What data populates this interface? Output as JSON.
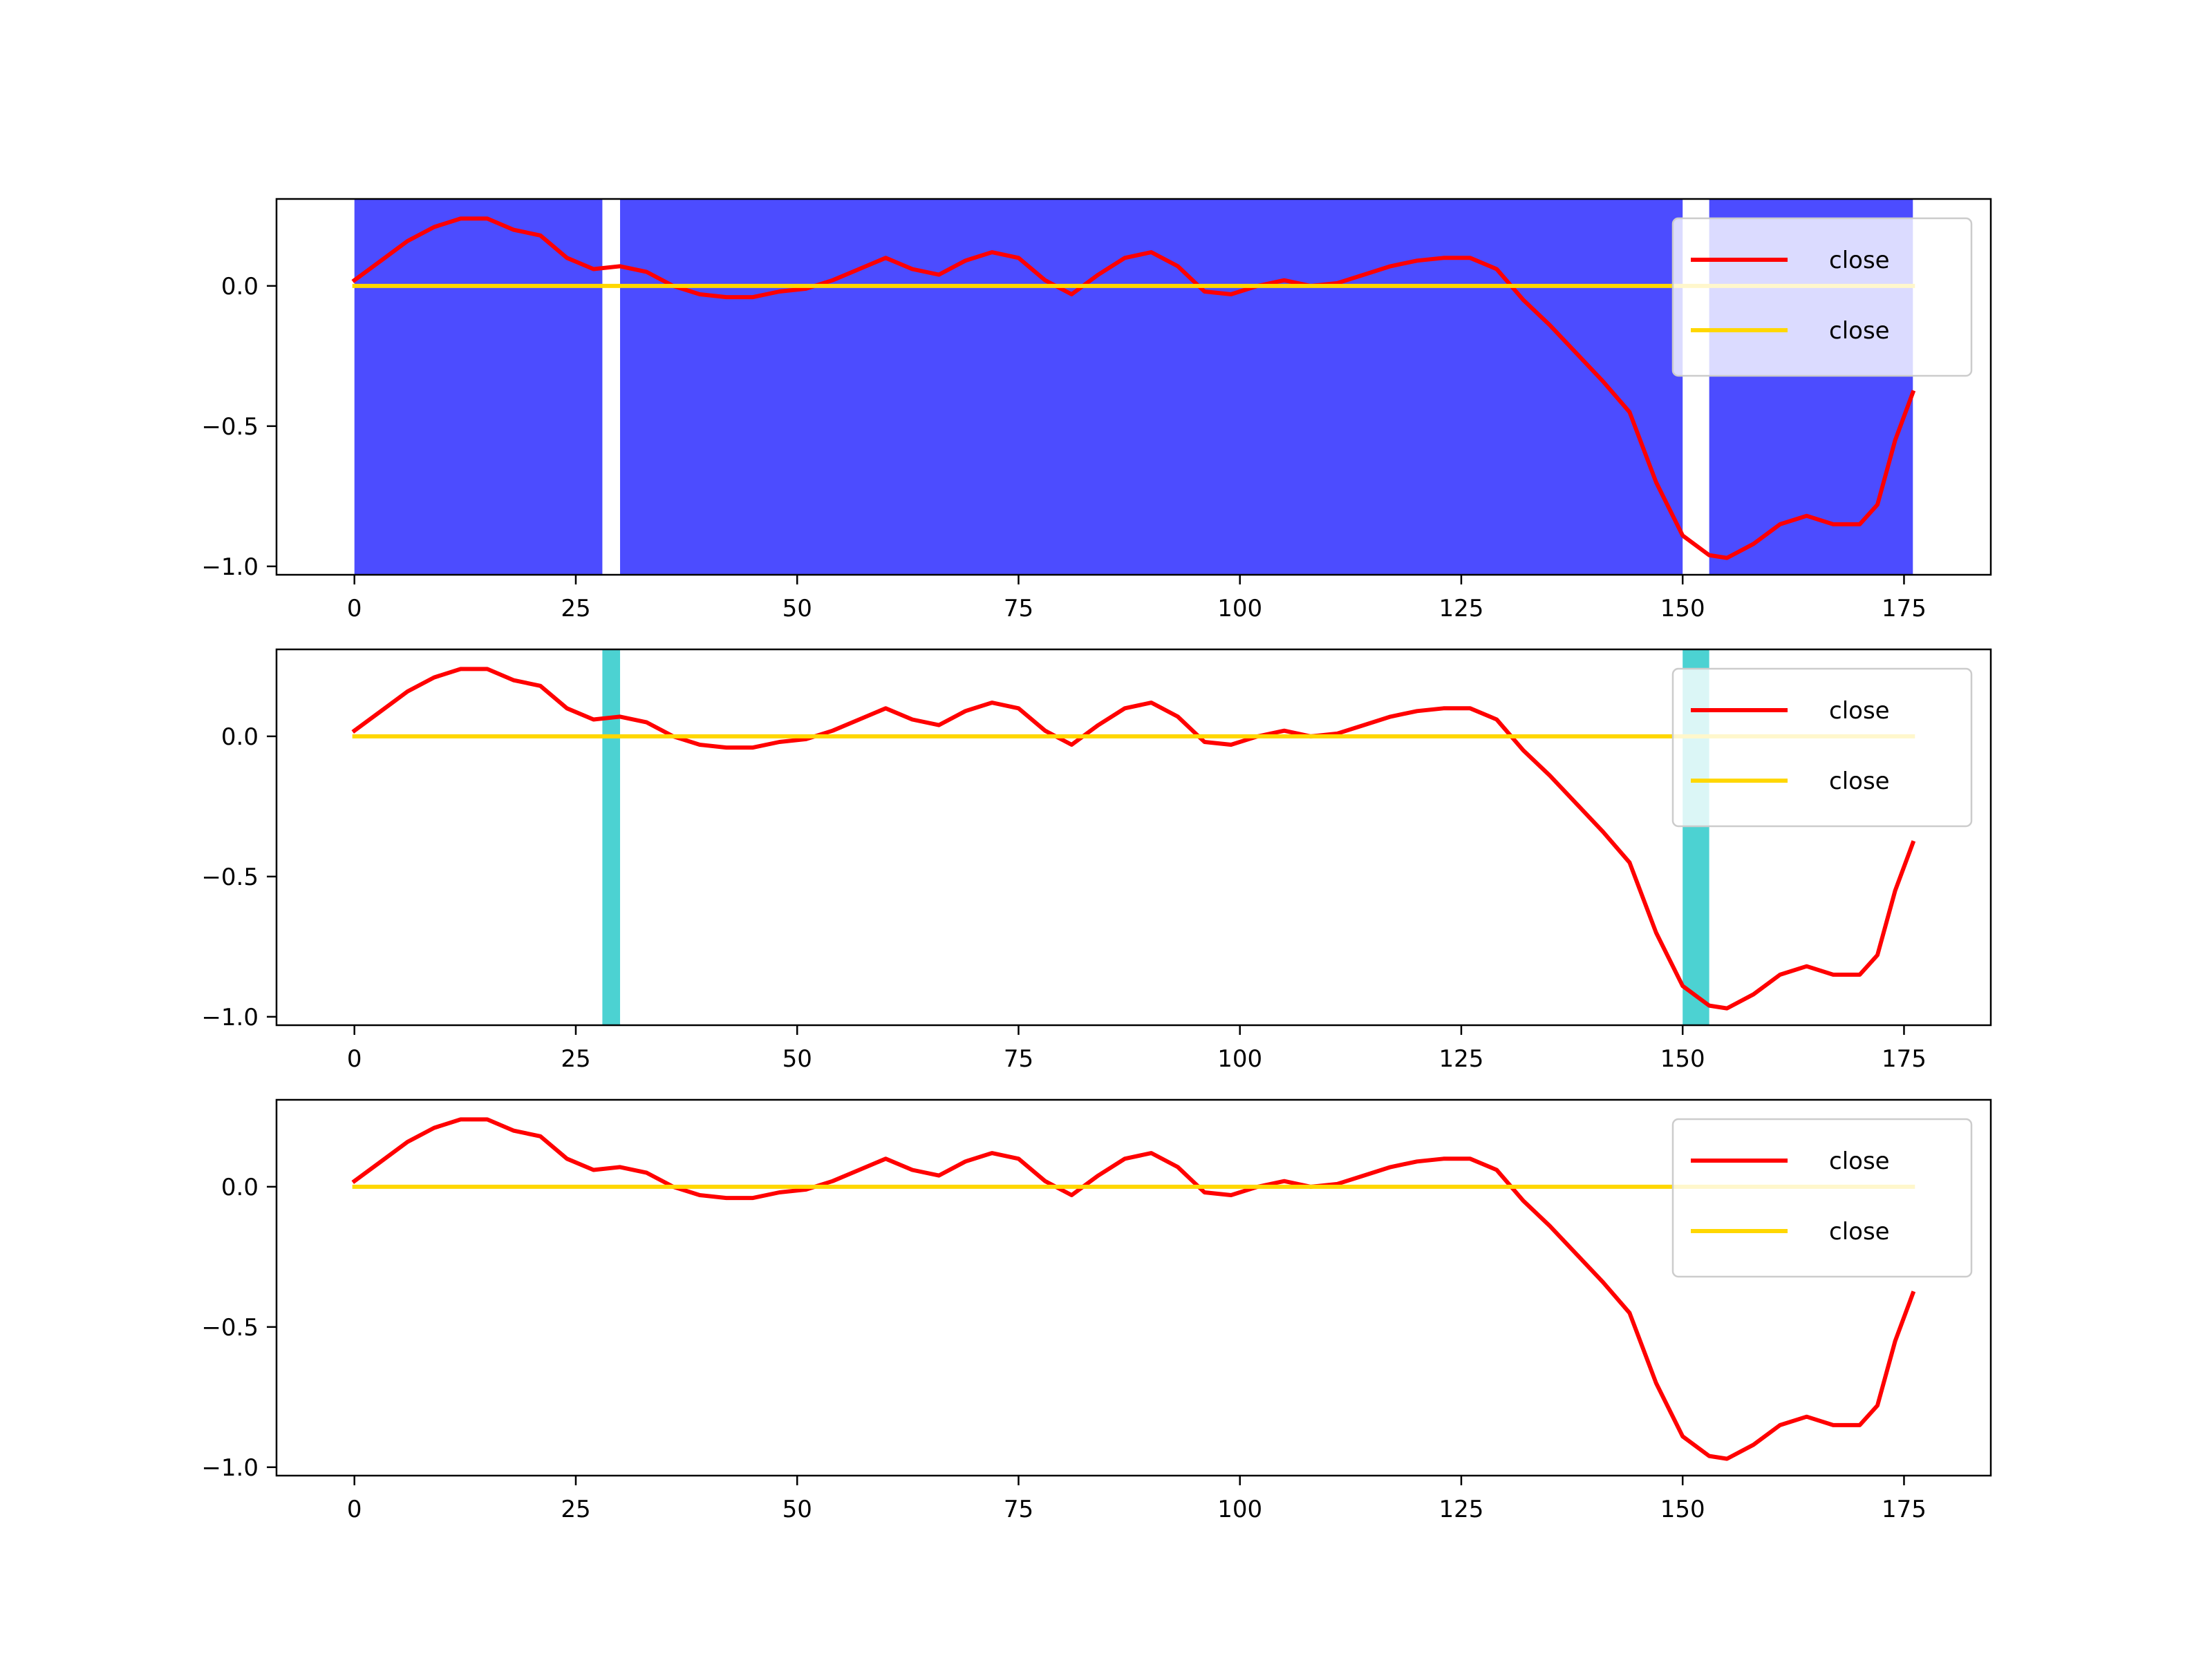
{
  "colors": {
    "close_red": "#ff0000",
    "close_gold": "#ffd700",
    "span_blue": "#0000ff",
    "span_cyan": "#00bfbf"
  },
  "chart_data": [
    {
      "type": "line",
      "title": "",
      "xlabel": "",
      "ylabel": "",
      "xlim": [
        -8.8,
        184.8
      ],
      "ylim": [
        -1.03,
        0.31
      ],
      "xticks": [
        "0",
        "25",
        "50",
        "75",
        "100",
        "125",
        "150",
        "175"
      ],
      "yticks": [
        "0.0",
        "−0.5",
        "−1.0"
      ],
      "legend": {
        "placement": "upper right",
        "entries": [
          "close",
          "close"
        ]
      },
      "shaded_spans": {
        "color": "#0000ff",
        "opacity": 0.7,
        "ranges": [
          [
            0,
            28
          ],
          [
            30,
            150
          ],
          [
            153,
            176
          ]
        ]
      },
      "series": [
        {
          "name": "close",
          "color": "#ff0000",
          "x": [
            0,
            3,
            6,
            9,
            12,
            15,
            18,
            21,
            24,
            27,
            30,
            33,
            36,
            39,
            42,
            45,
            48,
            51,
            54,
            57,
            60,
            63,
            66,
            69,
            72,
            75,
            78,
            81,
            84,
            87,
            90,
            93,
            96,
            99,
            102,
            105,
            108,
            111,
            114,
            117,
            120,
            123,
            126,
            129,
            132,
            135,
            138,
            141,
            144,
            147,
            150,
            153,
            155,
            158,
            161,
            164,
            167,
            170,
            172,
            174,
            176
          ],
          "y": [
            0.02,
            0.09,
            0.16,
            0.21,
            0.24,
            0.24,
            0.2,
            0.18,
            0.1,
            0.06,
            0.07,
            0.05,
            0.0,
            -0.03,
            -0.04,
            -0.04,
            -0.02,
            -0.01,
            0.02,
            0.06,
            0.1,
            0.06,
            0.04,
            0.09,
            0.12,
            0.1,
            0.02,
            -0.03,
            0.04,
            0.1,
            0.12,
            0.07,
            -0.02,
            -0.03,
            0.0,
            0.02,
            0.0,
            0.01,
            0.04,
            0.07,
            0.09,
            0.1,
            0.1,
            0.06,
            -0.05,
            -0.14,
            -0.24,
            -0.34,
            -0.45,
            -0.7,
            -0.89,
            -0.96,
            -0.97,
            -0.92,
            -0.85,
            -0.82,
            -0.85,
            -0.85,
            -0.78,
            -0.55,
            -0.38
          ]
        },
        {
          "name": "close",
          "color": "#ffd700",
          "x": [
            0,
            176
          ],
          "y": [
            0,
            0
          ]
        }
      ]
    },
    {
      "type": "line",
      "title": "",
      "xlabel": "",
      "ylabel": "",
      "xlim": [
        -8.8,
        184.8
      ],
      "ylim": [
        -1.03,
        0.31
      ],
      "xticks": [
        "0",
        "25",
        "50",
        "75",
        "100",
        "125",
        "150",
        "175"
      ],
      "yticks": [
        "0.0",
        "−0.5",
        "−1.0"
      ],
      "legend": {
        "placement": "upper right",
        "entries": [
          "close",
          "close"
        ]
      },
      "shaded_spans": {
        "color": "#00bfbf",
        "opacity": 0.7,
        "ranges": [
          [
            28,
            30
          ],
          [
            150,
            153
          ]
        ]
      },
      "series": [
        {
          "name": "close",
          "color": "#ff0000",
          "x": [
            0,
            3,
            6,
            9,
            12,
            15,
            18,
            21,
            24,
            27,
            30,
            33,
            36,
            39,
            42,
            45,
            48,
            51,
            54,
            57,
            60,
            63,
            66,
            69,
            72,
            75,
            78,
            81,
            84,
            87,
            90,
            93,
            96,
            99,
            102,
            105,
            108,
            111,
            114,
            117,
            120,
            123,
            126,
            129,
            132,
            135,
            138,
            141,
            144,
            147,
            150,
            153,
            155,
            158,
            161,
            164,
            167,
            170,
            172,
            174,
            176
          ],
          "y": [
            0.02,
            0.09,
            0.16,
            0.21,
            0.24,
            0.24,
            0.2,
            0.18,
            0.1,
            0.06,
            0.07,
            0.05,
            0.0,
            -0.03,
            -0.04,
            -0.04,
            -0.02,
            -0.01,
            0.02,
            0.06,
            0.1,
            0.06,
            0.04,
            0.09,
            0.12,
            0.1,
            0.02,
            -0.03,
            0.04,
            0.1,
            0.12,
            0.07,
            -0.02,
            -0.03,
            0.0,
            0.02,
            0.0,
            0.01,
            0.04,
            0.07,
            0.09,
            0.1,
            0.1,
            0.06,
            -0.05,
            -0.14,
            -0.24,
            -0.34,
            -0.45,
            -0.7,
            -0.89,
            -0.96,
            -0.97,
            -0.92,
            -0.85,
            -0.82,
            -0.85,
            -0.85,
            -0.78,
            -0.55,
            -0.38
          ]
        },
        {
          "name": "close",
          "color": "#ffd700",
          "x": [
            0,
            176
          ],
          "y": [
            0,
            0
          ]
        }
      ]
    },
    {
      "type": "line",
      "title": "",
      "xlabel": "",
      "ylabel": "",
      "xlim": [
        -8.8,
        184.8
      ],
      "ylim": [
        -1.03,
        0.31
      ],
      "xticks": [
        "0",
        "25",
        "50",
        "75",
        "100",
        "125",
        "150",
        "175"
      ],
      "yticks": [
        "0.0",
        "−0.5",
        "−1.0"
      ],
      "legend": {
        "placement": "upper right",
        "entries": [
          "close",
          "close"
        ]
      },
      "shaded_spans": {
        "color": "",
        "opacity": 0,
        "ranges": []
      },
      "series": [
        {
          "name": "close",
          "color": "#ff0000",
          "x": [
            0,
            3,
            6,
            9,
            12,
            15,
            18,
            21,
            24,
            27,
            30,
            33,
            36,
            39,
            42,
            45,
            48,
            51,
            54,
            57,
            60,
            63,
            66,
            69,
            72,
            75,
            78,
            81,
            84,
            87,
            90,
            93,
            96,
            99,
            102,
            105,
            108,
            111,
            114,
            117,
            120,
            123,
            126,
            129,
            132,
            135,
            138,
            141,
            144,
            147,
            150,
            153,
            155,
            158,
            161,
            164,
            167,
            170,
            172,
            174,
            176
          ],
          "y": [
            0.02,
            0.09,
            0.16,
            0.21,
            0.24,
            0.24,
            0.2,
            0.18,
            0.1,
            0.06,
            0.07,
            0.05,
            0.0,
            -0.03,
            -0.04,
            -0.04,
            -0.02,
            -0.01,
            0.02,
            0.06,
            0.1,
            0.06,
            0.04,
            0.09,
            0.12,
            0.1,
            0.02,
            -0.03,
            0.04,
            0.1,
            0.12,
            0.07,
            -0.02,
            -0.03,
            0.0,
            0.02,
            0.0,
            0.01,
            0.04,
            0.07,
            0.09,
            0.1,
            0.1,
            0.06,
            -0.05,
            -0.14,
            -0.24,
            -0.34,
            -0.45,
            -0.7,
            -0.89,
            -0.96,
            -0.97,
            -0.92,
            -0.85,
            -0.82,
            -0.85,
            -0.85,
            -0.78,
            -0.55,
            -0.38
          ]
        },
        {
          "name": "close",
          "color": "#ffd700",
          "x": [
            0,
            176
          ],
          "y": [
            0,
            0
          ]
        }
      ]
    }
  ]
}
